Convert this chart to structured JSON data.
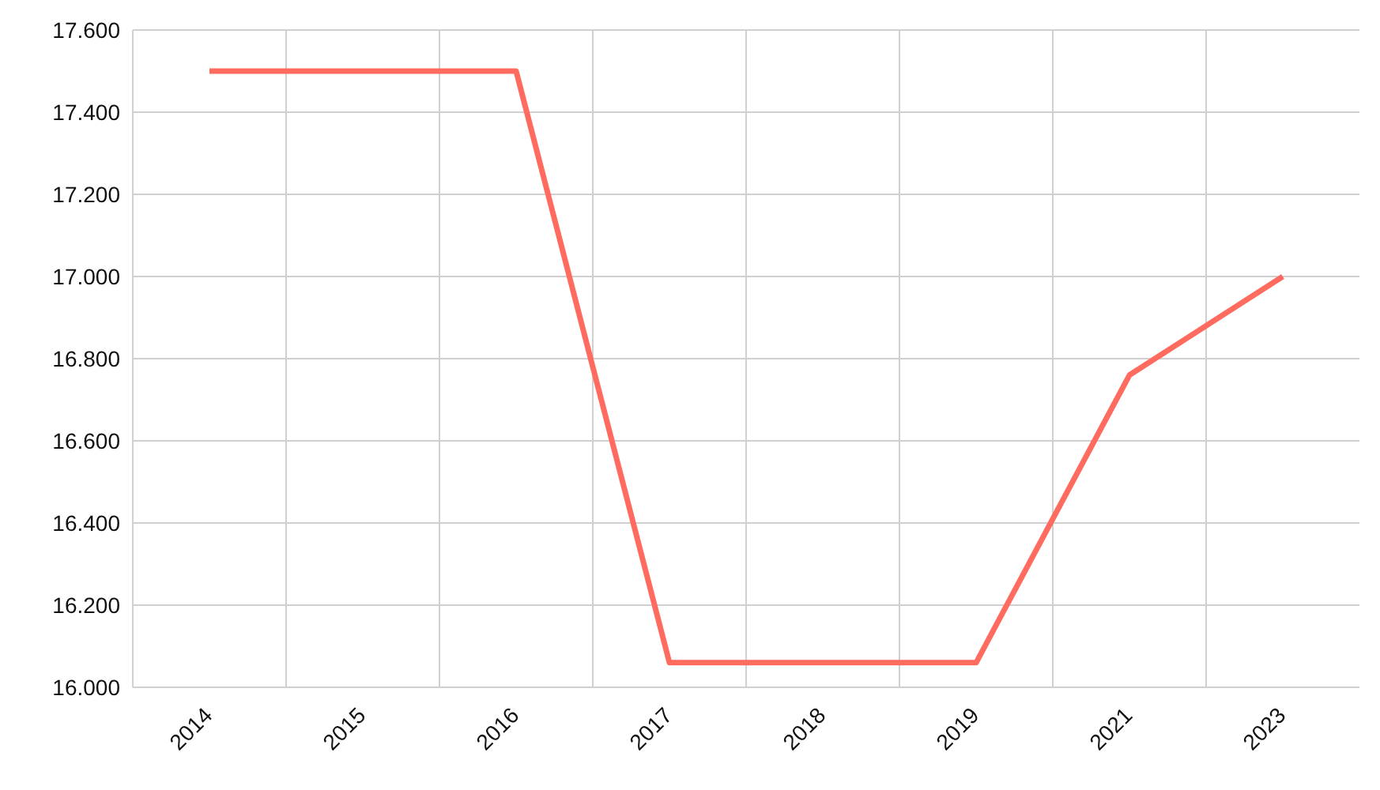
{
  "chart_data": {
    "type": "line",
    "categories": [
      "2014",
      "2015",
      "2016",
      "2017",
      "2018",
      "2019",
      "2021",
      "2023"
    ],
    "series": [
      {
        "color": "#ff6b5e",
        "values": [
          17500,
          17500,
          17500,
          16060,
          16060,
          16060,
          16760,
          17000
        ]
      }
    ],
    "ylim": [
      16000,
      17600
    ],
    "yticks": [
      {
        "value": 16000,
        "label": "16.000"
      },
      {
        "value": 16200,
        "label": "16.200"
      },
      {
        "value": 16400,
        "label": "16.400"
      },
      {
        "value": 16600,
        "label": "16.600"
      },
      {
        "value": 16800,
        "label": "16.800"
      },
      {
        "value": 17000,
        "label": "17.000"
      },
      {
        "value": 17200,
        "label": "17.200"
      },
      {
        "value": 17400,
        "label": "17.400"
      },
      {
        "value": 17600,
        "label": "17.600"
      }
    ],
    "grid": true,
    "marker": "none",
    "line_style": "solid",
    "legend": false
  }
}
